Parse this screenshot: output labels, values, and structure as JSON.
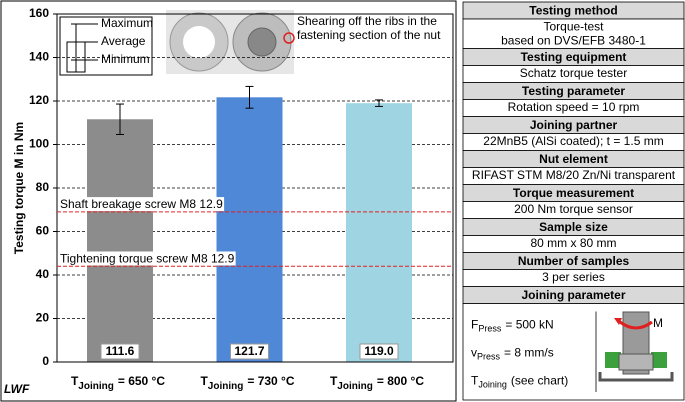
{
  "chart_data": {
    "type": "bar",
    "y_label": "Testing torque M in Nm",
    "category_symbol": "T",
    "category_subscript": "Joining",
    "categories": [
      "= 650 °C",
      "= 730 °C",
      "= 800 °C"
    ],
    "values": [
      111.6,
      121.7,
      119.0
    ],
    "value_labels": [
      "111.6",
      "121.7",
      "119.0"
    ],
    "errors": [
      7,
      5,
      1.5
    ],
    "colors": [
      "#8c8c8c",
      "#4f88d6",
      "#9fd4e2"
    ],
    "ylim": [
      0,
      160
    ],
    "yticks": [
      0,
      20,
      40,
      60,
      80,
      100,
      120,
      140,
      160
    ],
    "grid": true,
    "error_bar_key": [
      "Maximum",
      "Average",
      "Minimum"
    ],
    "reference_lines": [
      {
        "label": "Shaft breakage screw M8 12.9",
        "value": 69,
        "color": "#e02020"
      },
      {
        "label": "Tightening torque screw M8 12.9",
        "value": 44,
        "color": "#e02020"
      }
    ],
    "photo_note": [
      "Shearing off the ribs in the",
      "fastening section of the nut"
    ]
  },
  "logo": "LWF",
  "table": {
    "rows": [
      {
        "header": "Testing method",
        "lines": [
          "Torque-test",
          "based on DVS/EFB 3480-1"
        ]
      },
      {
        "header": "Testing equipment",
        "lines": [
          "Schatz torque tester"
        ]
      },
      {
        "header": "Testing parameter",
        "lines": [
          "Rotation speed = 10 rpm"
        ]
      },
      {
        "header": "Joining partner",
        "lines": [
          "22MnB5 (AlSi coated); t = 1.5 mm"
        ]
      },
      {
        "header": "Nut element",
        "lines": [
          "RIFAST STM M8/20 Zn/Ni transparent"
        ]
      },
      {
        "header": "Torque measurement",
        "lines": [
          "200 Nm torque sensor"
        ]
      },
      {
        "header": "Sample size",
        "lines": [
          "80 mm x 80 mm"
        ]
      },
      {
        "header": "Number of samples",
        "lines": [
          "3 per series"
        ]
      }
    ],
    "joining": {
      "header": "Joining parameter",
      "params": [
        {
          "symbol": "F",
          "subscript": "Press",
          "text": "= 500 kN"
        },
        {
          "symbol": "v",
          "subscript": "Press",
          "text": "= 8 mm/s"
        },
        {
          "symbol": "T",
          "subscript": "Joining",
          "text": "(see chart)"
        }
      ],
      "image_label": "M"
    }
  }
}
